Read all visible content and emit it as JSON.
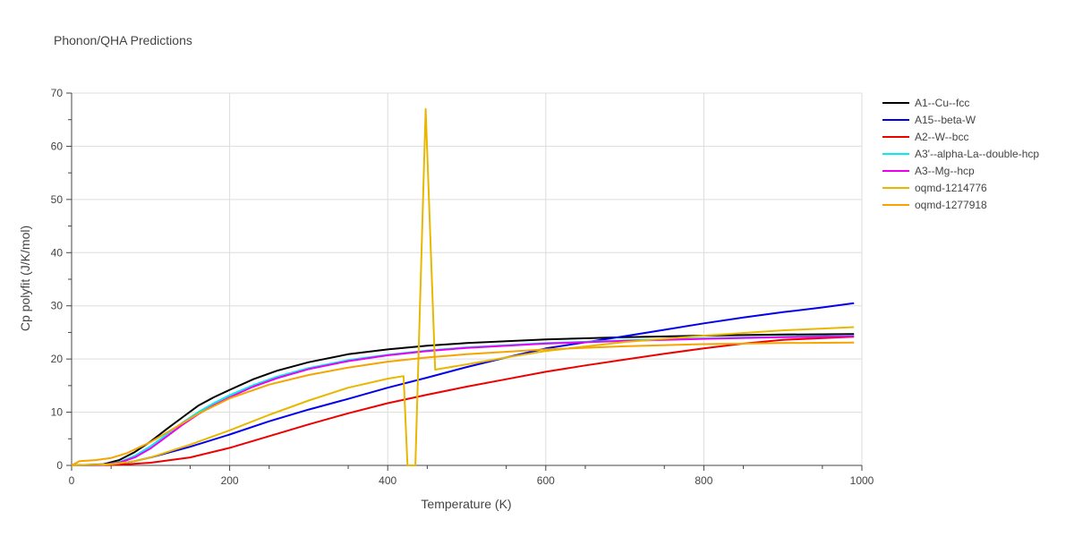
{
  "chart_data": {
    "type": "line",
    "title": "Phonon/QHA Predictions",
    "xlabel": "Temperature (K)",
    "ylabel": "Cp polyfit (J/K/mol)",
    "xlim": [
      0,
      1000
    ],
    "ylim": [
      0,
      70
    ],
    "xticks": [
      0,
      200,
      400,
      600,
      800,
      1000
    ],
    "yticks": [
      0,
      10,
      20,
      30,
      40,
      50,
      60,
      70
    ],
    "grid": true,
    "legend_position": "top-right",
    "series": [
      {
        "name": "A1--Cu--fcc",
        "color": "#000000",
        "x": [
          0,
          40,
          60,
          80,
          100,
          120,
          140,
          160,
          180,
          200,
          230,
          260,
          300,
          350,
          400,
          450,
          500,
          600,
          700,
          800,
          900,
          990
        ],
        "y": [
          0,
          0.2,
          1.0,
          2.5,
          4.5,
          6.8,
          9.0,
          11.2,
          12.8,
          14.2,
          16.2,
          17.8,
          19.4,
          20.9,
          21.8,
          22.5,
          23.0,
          23.7,
          24.1,
          24.4,
          24.6,
          24.7
        ]
      },
      {
        "name": "A15--beta-W",
        "color": "#0000ee",
        "x": [
          0,
          50,
          80,
          100,
          150,
          200,
          250,
          300,
          350,
          400,
          450,
          500,
          550,
          600,
          700,
          750,
          800,
          850,
          900,
          950,
          990
        ],
        "y": [
          0,
          0.1,
          0.8,
          1.5,
          3.5,
          5.8,
          8.3,
          10.5,
          12.5,
          14.6,
          16.5,
          18.5,
          20.3,
          22.0,
          24.3,
          25.5,
          26.7,
          27.8,
          28.8,
          29.7,
          30.5
        ]
      },
      {
        "name": "A2--W--bcc",
        "color": "#ee0000",
        "x": [
          0,
          60,
          100,
          150,
          200,
          250,
          300,
          350,
          400,
          450,
          500,
          550,
          600,
          650,
          700,
          750,
          800,
          850,
          900,
          990
        ],
        "y": [
          0,
          0.1,
          0.5,
          1.5,
          3.3,
          5.5,
          7.7,
          9.8,
          11.7,
          13.3,
          14.8,
          16.2,
          17.6,
          18.8,
          19.9,
          21.0,
          22.0,
          22.9,
          23.6,
          24.2
        ]
      },
      {
        "name": "A3'--alpha-La--double-hcp",
        "color": "#00eeee",
        "x": [
          0,
          40,
          60,
          80,
          100,
          120,
          140,
          160,
          180,
          200,
          230,
          260,
          300,
          350,
          400,
          450,
          500,
          600,
          700,
          800,
          900,
          990
        ],
        "y": [
          0,
          0.1,
          0.6,
          1.8,
          3.6,
          5.8,
          8.0,
          10.0,
          11.7,
          13.2,
          15.1,
          16.7,
          18.3,
          19.8,
          20.8,
          21.6,
          22.2,
          23.0,
          23.5,
          23.9,
          24.2,
          24.4
        ]
      },
      {
        "name": "A3--Mg--hcp",
        "color": "#ee00ee",
        "x": [
          0,
          40,
          60,
          80,
          100,
          120,
          140,
          160,
          180,
          200,
          230,
          260,
          300,
          350,
          400,
          450,
          500,
          600,
          700,
          800,
          900,
          990
        ],
        "y": [
          0,
          0.1,
          0.5,
          1.5,
          3.2,
          5.4,
          7.6,
          9.6,
          11.3,
          12.8,
          14.8,
          16.4,
          18.1,
          19.6,
          20.7,
          21.5,
          22.1,
          22.9,
          23.4,
          23.8,
          24.1,
          24.3
        ]
      },
      {
        "name": "oqmd-1214776",
        "color": "#e8b800",
        "x": [
          0,
          50,
          80,
          100,
          150,
          200,
          250,
          300,
          350,
          400,
          420,
          425,
          435,
          448,
          460,
          500,
          550,
          600,
          700,
          800,
          900,
          990
        ],
        "y": [
          0,
          0.2,
          0.8,
          1.5,
          3.9,
          6.6,
          9.5,
          12.2,
          14.6,
          16.3,
          16.8,
          0,
          0,
          67,
          18.0,
          19.0,
          20.3,
          21.5,
          23.2,
          24.4,
          25.4,
          26.0
        ]
      },
      {
        "name": "oqmd-1277918",
        "color": "#f5a400",
        "x": [
          0,
          10,
          30,
          50,
          70,
          100,
          130,
          160,
          200,
          250,
          300,
          350,
          400,
          450,
          500,
          600,
          700,
          800,
          900,
          990
        ],
        "y": [
          0,
          0.8,
          1.0,
          1.4,
          2.3,
          4.4,
          7.0,
          9.7,
          12.6,
          15.2,
          17.0,
          18.4,
          19.5,
          20.3,
          20.9,
          21.8,
          22.4,
          22.8,
          23.0,
          23.1
        ]
      }
    ]
  }
}
